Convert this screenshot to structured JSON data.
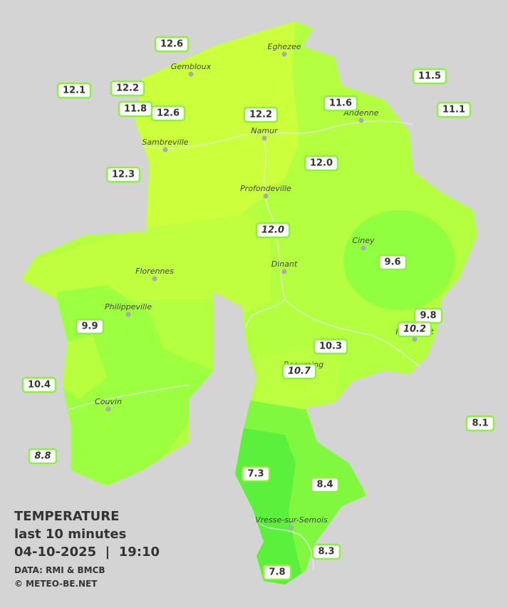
{
  "legend": {
    "title": "TEMPERATURE",
    "subtitle": "last 10 minutes",
    "datetime": "04-10-2025  |  19:10",
    "credits": [
      "DATA: RMI & BMCB",
      "© METEO-BE.NET"
    ]
  },
  "cities": [
    {
      "name": "Eghezee"
    },
    {
      "name": "Gembloux"
    },
    {
      "name": "Andenne"
    },
    {
      "name": "Namur"
    },
    {
      "name": "Sambreville"
    },
    {
      "name": "Profondeville"
    },
    {
      "name": "Ciney"
    },
    {
      "name": "Dinant"
    },
    {
      "name": "Florennes"
    },
    {
      "name": "Philippeville"
    },
    {
      "name": "Rochefort"
    },
    {
      "name": "Beauraing"
    },
    {
      "name": "Couvin"
    },
    {
      "name": "Vresse-sur-Semois"
    }
  ],
  "stations": [
    {
      "value": "12.6"
    },
    {
      "value": "12.1"
    },
    {
      "value": "12.2"
    },
    {
      "value": "11.8"
    },
    {
      "value": "12.6"
    },
    {
      "value": "12.2"
    },
    {
      "value": "11.6"
    },
    {
      "value": "11.5"
    },
    {
      "value": "11.1"
    },
    {
      "value": "12.3"
    },
    {
      "value": "12.0"
    },
    {
      "value": "12.0",
      "italic": true
    },
    {
      "value": "9.6"
    },
    {
      "value": "9.9"
    },
    {
      "value": "9.8"
    },
    {
      "value": "10.2",
      "italic": true
    },
    {
      "value": "10.3"
    },
    {
      "value": "10.7",
      "italic": true
    },
    {
      "value": "10.4"
    },
    {
      "value": "8.1"
    },
    {
      "value": "8.8",
      "italic": true
    },
    {
      "value": "7.3"
    },
    {
      "value": "8.4"
    },
    {
      "value": "8.3"
    },
    {
      "value": "7.8"
    }
  ]
}
